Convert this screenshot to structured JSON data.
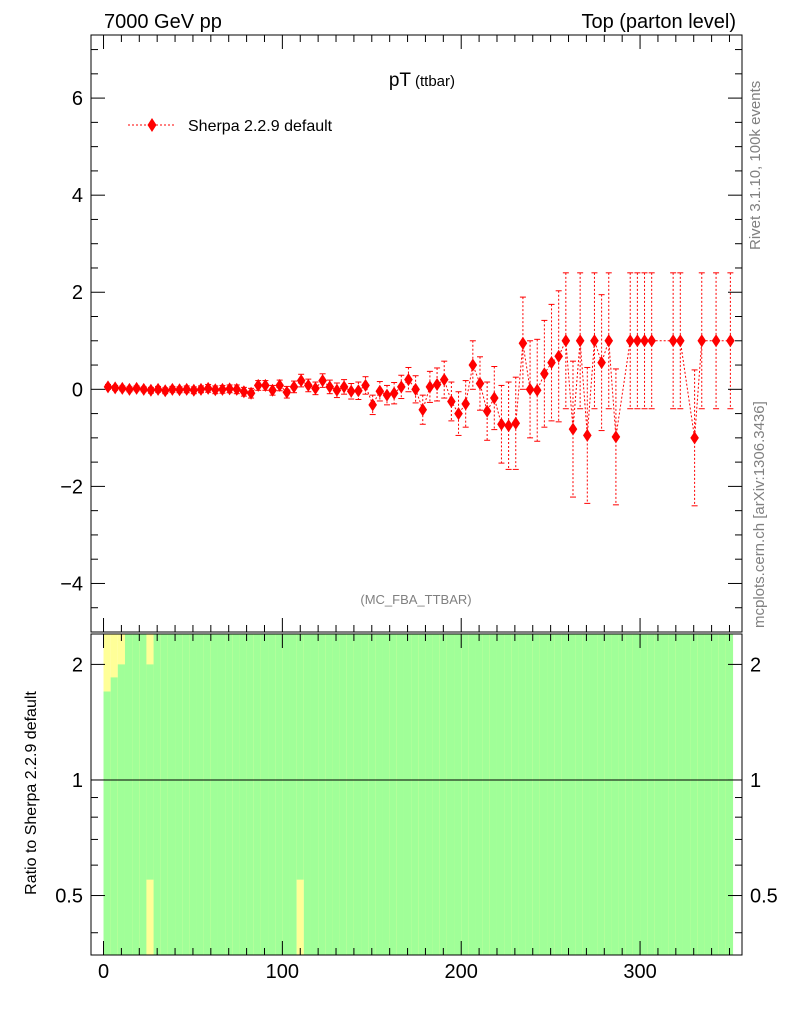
{
  "header": {
    "left": "7000 GeV pp",
    "right": "Top (parton level)"
  },
  "plot": {
    "title_main": "pT",
    "title_sub": "(ttbar)",
    "analysis_tag": "(MC_FBA_TTBAR)",
    "side_label_top": "Rivet 3.1.10,  100k events",
    "side_label_bottom": "mcplots.cern.ch [arXiv:1306.3436]"
  },
  "legend": {
    "placement": "top-left",
    "entries": [
      "Sherpa 2.2.9 default"
    ]
  },
  "colors": {
    "series": "#ff0000",
    "band_inner": "#a0ff98",
    "band_outer": "#ffff98",
    "axis": "#000000",
    "grey_text": "#808080"
  },
  "chart_data": [
    {
      "type": "scatter",
      "panel": "main",
      "ylim": [
        -5,
        7.3
      ],
      "xlim": [
        -7,
        357
      ],
      "y_ticks": [
        -4,
        -2,
        0,
        2,
        4,
        6
      ],
      "y_tick_labels": [
        "−4",
        "−2",
        "0",
        "2",
        "4",
        "6"
      ],
      "grid": false,
      "series": [
        {
          "name": "Sherpa 2.2.9 default",
          "x": [
            2.5,
            6.5,
            10.5,
            14.5,
            18.5,
            22.5,
            26.5,
            30.5,
            34.5,
            38.5,
            42.5,
            46.5,
            50.5,
            54.5,
            58.5,
            62.5,
            66.5,
            70.5,
            74.5,
            78.5,
            82.5,
            86.5,
            90.5,
            94.5,
            98.5,
            102.5,
            106.5,
            110.5,
            114.5,
            118.5,
            122.5,
            126.5,
            130.5,
            134.5,
            138.5,
            142.5,
            146.5,
            150.5,
            154.5,
            158.5,
            162.5,
            166.5,
            170.5,
            174.5,
            178.5,
            182.5,
            186.5,
            190.5,
            194.5,
            198.5,
            202.5,
            206.5,
            210.5,
            214.5,
            218.5,
            222.5,
            226.5,
            230.5,
            234.5,
            238.5,
            242.5,
            246.5,
            250.5,
            254.5,
            258.5,
            262.5,
            266.5,
            270.5,
            274.5,
            278.5,
            282.5,
            286.5,
            294.5,
            298.5,
            302.5,
            306.5,
            318.5,
            322.5,
            330.5,
            334.5,
            342.5,
            350.5
          ],
          "y": [
            0.05,
            0.03,
            0.02,
            0.0,
            0.02,
            0.0,
            -0.02,
            0.0,
            -0.03,
            0.0,
            -0.01,
            0.0,
            -0.02,
            0.0,
            0.02,
            -0.01,
            0.0,
            0.01,
            0.0,
            -0.05,
            -0.08,
            0.08,
            0.08,
            -0.02,
            0.08,
            -0.06,
            0.05,
            0.18,
            0.08,
            0.02,
            0.18,
            0.05,
            -0.02,
            0.05,
            -0.04,
            -0.03,
            0.08,
            -0.32,
            -0.04,
            -0.12,
            -0.08,
            0.05,
            0.2,
            0.0,
            -0.42,
            0.05,
            0.1,
            0.2,
            -0.25,
            -0.5,
            -0.3,
            0.5,
            0.12,
            -0.45,
            -0.18,
            -0.72,
            -0.75,
            -0.7,
            0.95,
            0.0,
            -0.02,
            0.32,
            0.55,
            0.68,
            1.0,
            -0.82,
            1.0,
            -0.95,
            1.0,
            0.55,
            1.0,
            -0.98,
            1.0,
            1.0,
            1.0,
            1.0,
            1.0,
            1.0,
            -1.0,
            1.0,
            1.0,
            1.0
          ],
          "err": [
            0.05,
            0.05,
            0.05,
            0.05,
            0.05,
            0.05,
            0.06,
            0.06,
            0.06,
            0.06,
            0.06,
            0.07,
            0.07,
            0.07,
            0.08,
            0.08,
            0.08,
            0.08,
            0.09,
            0.09,
            0.1,
            0.1,
            0.1,
            0.1,
            0.11,
            0.12,
            0.12,
            0.13,
            0.13,
            0.13,
            0.14,
            0.14,
            0.15,
            0.15,
            0.16,
            0.18,
            0.18,
            0.2,
            0.2,
            0.2,
            0.22,
            0.24,
            0.25,
            0.28,
            0.3,
            0.32,
            0.34,
            0.38,
            0.4,
            0.45,
            0.48,
            0.5,
            0.55,
            0.6,
            0.65,
            0.8,
            0.9,
            0.95,
            0.95,
            1.0,
            1.05,
            1.1,
            1.2,
            1.35,
            1.4,
            1.4,
            1.4,
            1.4,
            1.4,
            1.4,
            1.4,
            1.4,
            1.4,
            1.4,
            1.4,
            1.4,
            1.4,
            1.4,
            1.4,
            1.4,
            1.4,
            1.4
          ]
        }
      ]
    },
    {
      "type": "area",
      "panel": "ratio",
      "ylabel": "Ratio to Sherpa 2.2.9 default",
      "y_scale": "log",
      "ylim": [
        0.35,
        2.4
      ],
      "xlim": [
        -7,
        357
      ],
      "x_ticks": [
        0,
        100,
        200,
        300
      ],
      "y_ticks": [
        0.5,
        1,
        2
      ],
      "y_tick_labels": [
        "0.5",
        "1",
        "2"
      ],
      "reference_line": 1,
      "bin_edges": [
        0,
        4,
        8,
        12,
        16,
        20,
        24,
        28,
        32,
        36,
        40,
        44,
        48,
        52,
        56,
        60,
        64,
        68,
        72,
        76,
        80,
        84,
        88,
        92,
        96,
        100,
        104,
        108,
        112,
        116,
        120,
        124,
        128,
        132,
        136,
        140,
        144,
        148,
        152,
        156,
        160,
        164,
        168,
        172,
        176,
        180,
        184,
        188,
        192,
        196,
        200,
        204,
        208,
        212,
        216,
        220,
        224,
        228,
        232,
        236,
        240,
        244,
        248,
        252,
        256,
        260,
        264,
        268,
        272,
        276,
        280,
        284,
        288,
        292,
        296,
        300,
        304,
        308,
        312,
        316,
        320,
        324,
        328,
        332,
        336,
        340,
        344,
        348,
        352
      ],
      "inner_band_upper": [
        1.7,
        1.85,
        2.0,
        2.4,
        2.4,
        2.4,
        2.0,
        2.4,
        2.4,
        2.4,
        2.4,
        2.4,
        2.4,
        2.4,
        2.4,
        2.4,
        2.4,
        2.4,
        2.4,
        2.4,
        2.4,
        2.4,
        2.4,
        2.4,
        2.4,
        2.4,
        2.4,
        2.4,
        2.4,
        2.4,
        2.4,
        2.4,
        2.4,
        2.4,
        2.4,
        2.4,
        2.4,
        2.4,
        2.4,
        2.4,
        2.4,
        2.4,
        2.4,
        2.4,
        2.4,
        2.4,
        2.4,
        2.4,
        2.4,
        2.4,
        2.4,
        2.4,
        2.4,
        2.4,
        2.4,
        2.4,
        2.4,
        2.4,
        2.4,
        2.4,
        2.4,
        2.4,
        2.4,
        2.4,
        2.4,
        2.4,
        2.4,
        2.4,
        2.4,
        2.4,
        2.4,
        2.4,
        2.4,
        2.4,
        2.4,
        2.4,
        2.4,
        2.4,
        2.4,
        2.4,
        2.4,
        2.4,
        2.4,
        2.4,
        2.4,
        2.4,
        2.4,
        2.4
      ],
      "outer_band_upper": [
        2.4,
        2.4,
        2.4,
        2.4,
        2.4,
        2.4,
        2.4,
        2.4,
        2.4,
        2.4,
        2.4,
        2.4,
        2.4,
        2.4,
        2.4,
        2.4,
        2.4,
        2.4,
        2.4,
        2.4,
        2.4,
        2.4,
        2.4,
        2.4,
        2.4,
        2.4,
        2.4,
        2.4,
        2.4,
        2.4,
        2.4,
        2.4,
        2.4,
        2.4,
        2.4,
        2.4,
        2.4,
        2.4,
        2.4,
        2.4,
        2.4,
        2.4,
        2.4,
        2.4,
        2.4,
        2.4,
        2.4,
        2.4,
        2.4,
        2.4,
        2.4,
        2.4,
        2.4,
        2.4,
        2.4,
        2.4,
        2.4,
        2.4,
        2.4,
        2.4,
        2.4,
        2.4,
        2.4,
        2.4,
        2.4,
        2.4,
        2.4,
        2.4,
        2.4,
        2.4,
        2.4,
        2.4,
        2.4,
        2.4,
        2.4,
        2.4,
        2.4,
        2.4,
        2.4,
        2.4,
        2.4,
        2.4,
        2.4,
        2.4,
        2.4,
        2.4,
        2.4,
        2.4
      ],
      "inner_band_lower": [
        0.35,
        0.35,
        0.35,
        0.35,
        0.35,
        0.35,
        0.55,
        0.35,
        0.35,
        0.35,
        0.35,
        0.35,
        0.35,
        0.35,
        0.35,
        0.35,
        0.35,
        0.35,
        0.35,
        0.35,
        0.35,
        0.35,
        0.35,
        0.35,
        0.35,
        0.35,
        0.35,
        0.55,
        0.35,
        0.35,
        0.35,
        0.35,
        0.35,
        0.35,
        0.35,
        0.35,
        0.35,
        0.35,
        0.35,
        0.35,
        0.35,
        0.35,
        0.35,
        0.35,
        0.35,
        0.35,
        0.35,
        0.35,
        0.35,
        0.35,
        0.35,
        0.35,
        0.35,
        0.35,
        0.35,
        0.35,
        0.35,
        0.35,
        0.35,
        0.35,
        0.35,
        0.35,
        0.35,
        0.35,
        0.35,
        0.35,
        0.35,
        0.35,
        0.35,
        0.35,
        0.35,
        0.35,
        0.35,
        0.35,
        0.35,
        0.35,
        0.35,
        0.35,
        0.35,
        0.35,
        0.35,
        0.35,
        0.35,
        0.35,
        0.35,
        0.35,
        0.35,
        0.35
      ]
    }
  ]
}
